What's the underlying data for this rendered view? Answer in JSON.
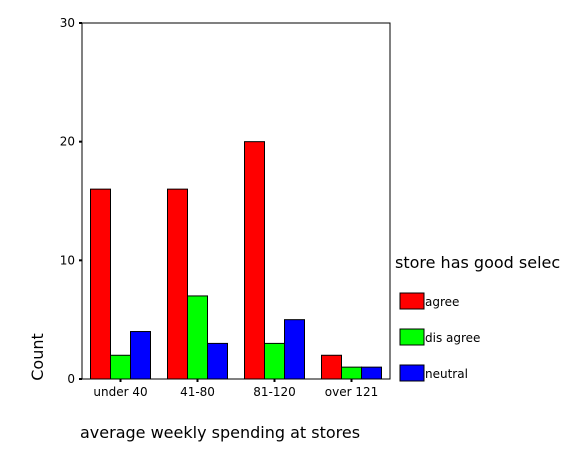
{
  "chart_data": {
    "type": "bar",
    "xlabel": "average weekly spending at stores",
    "ylabel": "Count",
    "ylim": [
      0,
      30
    ],
    "yticks": [
      0,
      10,
      20,
      30
    ],
    "categories": [
      "under 40",
      "41-80",
      "81-120",
      "over 121"
    ],
    "legend": {
      "title": "store has good selec",
      "placement": "right"
    },
    "series": [
      {
        "name": "agree",
        "color": "#ff0000",
        "values": [
          16,
          16,
          20,
          2
        ]
      },
      {
        "name": "dis agree",
        "color": "#00ff00",
        "values": [
          2,
          7,
          3,
          1
        ]
      },
      {
        "name": "neutral",
        "color": "#0000ff",
        "values": [
          4,
          3,
          5,
          1
        ]
      }
    ],
    "grid": false
  }
}
